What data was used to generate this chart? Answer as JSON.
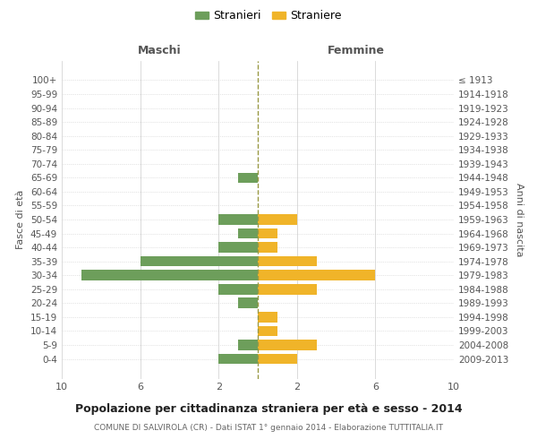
{
  "age_groups": [
    "100+",
    "95-99",
    "90-94",
    "85-89",
    "80-84",
    "75-79",
    "70-74",
    "65-69",
    "60-64",
    "55-59",
    "50-54",
    "45-49",
    "40-44",
    "35-39",
    "30-34",
    "25-29",
    "20-24",
    "15-19",
    "10-14",
    "5-9",
    "0-4"
  ],
  "birth_years": [
    "≤ 1913",
    "1914-1918",
    "1919-1923",
    "1924-1928",
    "1929-1933",
    "1934-1938",
    "1939-1943",
    "1944-1948",
    "1949-1953",
    "1954-1958",
    "1959-1963",
    "1964-1968",
    "1969-1973",
    "1974-1978",
    "1979-1983",
    "1984-1988",
    "1989-1993",
    "1994-1998",
    "1999-2003",
    "2004-2008",
    "2009-2013"
  ],
  "stranieri": [
    0,
    0,
    0,
    0,
    0,
    0,
    0,
    1,
    0,
    0,
    2,
    1,
    2,
    6,
    9,
    2,
    1,
    0,
    0,
    1,
    2
  ],
  "straniere": [
    0,
    0,
    0,
    0,
    0,
    0,
    0,
    0,
    0,
    0,
    2,
    1,
    1,
    3,
    6,
    3,
    0,
    1,
    1,
    3,
    2
  ],
  "color_stranieri": "#6d9e5b",
  "color_straniere": "#f0b429",
  "title": "Popolazione per cittadinanza straniera per età e sesso - 2014",
  "subtitle": "COMUNE DI SALVIROLA (CR) - Dati ISTAT 1° gennaio 2014 - Elaborazione TUTTITALIA.IT",
  "legend_stranieri": "Stranieri",
  "legend_straniere": "Straniere",
  "xlabel_left": "Maschi",
  "xlabel_right": "Femmine",
  "ylabel_left": "Fasce di età",
  "ylabel_right": "Anni di nascita",
  "xlim": 10,
  "background_color": "#ffffff",
  "grid_color": "#cccccc"
}
